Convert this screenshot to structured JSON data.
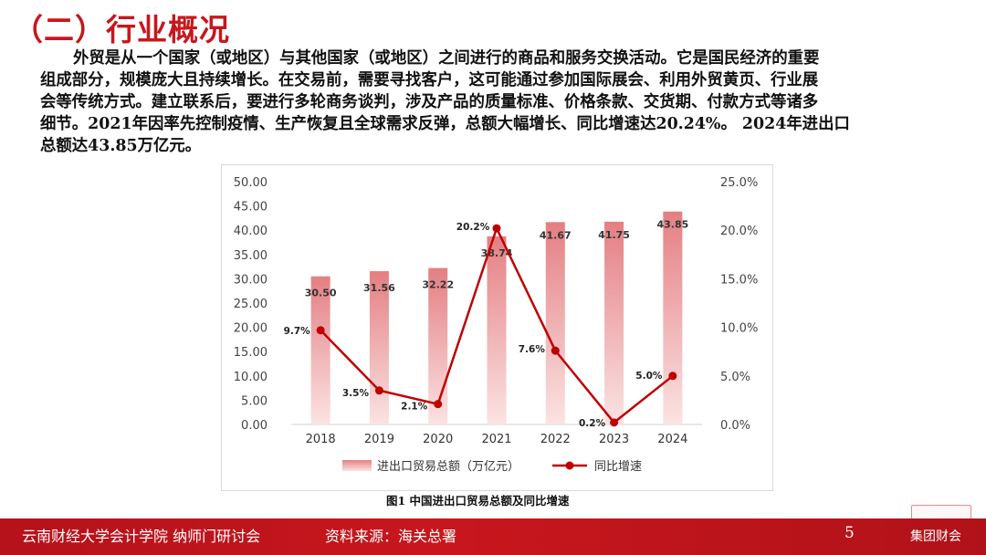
{
  "section_title": "（二）行业概况",
  "intro_lines": [
    "外贸是从一个国家（或地区）与其他国家（或地区）之间进行的商品和服务交换活动。它是国民经济的重要",
    "组成部分，规模庞大且持续增长。在交易前，需要寻找客户，这可能通过参加国际展会、利用外贸黄页、行业展",
    "会等传统方式。建立联系后，要进行多轮商务谈判，涉及产品的质量标准、价格条款、交货期、付款方式等诸多",
    "细节。2021年因率先控制疫情、生产恢复且全球需求反弹，总额大幅增长、同比增速达20.24%。 2024年进出口",
    "总额达43.85万亿元。"
  ],
  "chart_data": {
    "type": "bar+line",
    "title": "",
    "categories": [
      "2018",
      "2019",
      "2020",
      "2021",
      "2022",
      "2023",
      "2024"
    ],
    "series": [
      {
        "name": "进出口贸易总额（万亿元）",
        "type": "bar",
        "axis": "left",
        "values": [
          30.5,
          31.56,
          32.22,
          38.74,
          41.67,
          41.75,
          43.85
        ],
        "labels": [
          "30.50",
          "31.56",
          "32.22",
          "38.74",
          "41.67",
          "41.75",
          "43.85"
        ],
        "color": "#e88f92"
      },
      {
        "name": "同比增速",
        "type": "line",
        "axis": "right",
        "values": [
          9.7,
          3.5,
          2.1,
          20.2,
          7.6,
          0.2,
          5.0
        ],
        "labels": [
          "9.7%",
          "3.5%",
          "2.1%",
          "20.2%",
          "7.6%",
          "0.2%",
          "5.0%"
        ],
        "color": "#c00000"
      }
    ],
    "y_left": {
      "min": 0,
      "max": 50,
      "ticks": [
        "0.00",
        "5.00",
        "10.00",
        "15.00",
        "20.00",
        "25.00",
        "30.00",
        "35.00",
        "40.00",
        "45.00",
        "50.00"
      ]
    },
    "y_right": {
      "min": 0,
      "max": 25,
      "ticks": [
        "0.0%",
        "5.0%",
        "10.0%",
        "15.0%",
        "20.0%",
        "25.0%"
      ]
    },
    "grid": false,
    "legend_position": "bottom"
  },
  "caption": "图1 中国进出口贸易总额及同比增速",
  "footer": {
    "school": "云南财经大学会计学院 纳师门研讨会",
    "source": "资料来源：海关总署",
    "page": "5",
    "brand": "集团财会"
  },
  "colors": {
    "accent": "#c8161d",
    "bar": "#e88f92",
    "line": "#c00000"
  }
}
